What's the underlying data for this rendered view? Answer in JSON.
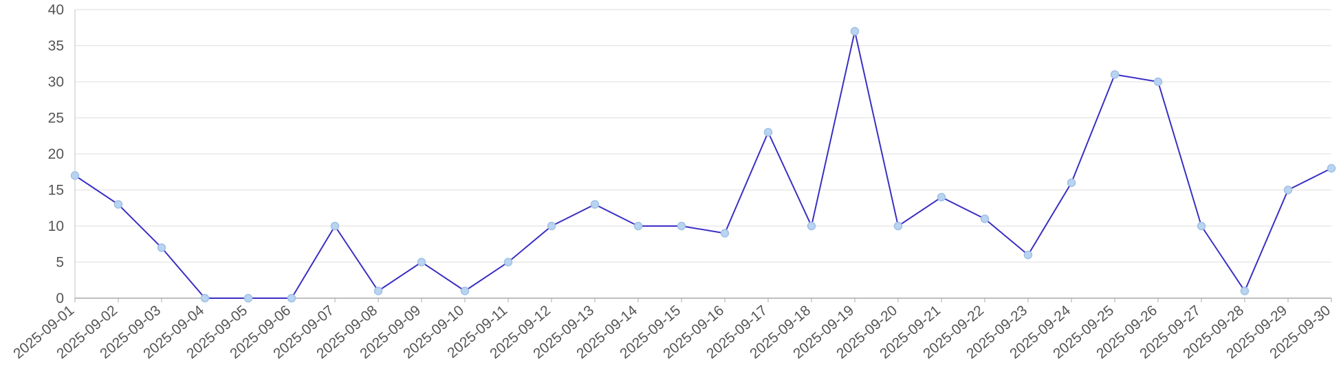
{
  "chart_data": {
    "type": "line",
    "categories": [
      "2025-09-01",
      "2025-09-02",
      "2025-09-03",
      "2025-09-04",
      "2025-09-05",
      "2025-09-06",
      "2025-09-07",
      "2025-09-08",
      "2025-09-09",
      "2025-09-10",
      "2025-09-11",
      "2025-09-12",
      "2025-09-13",
      "2025-09-14",
      "2025-09-15",
      "2025-09-16",
      "2025-09-17",
      "2025-09-18",
      "2025-09-19",
      "2025-09-20",
      "2025-09-21",
      "2025-09-22",
      "2025-09-23",
      "2025-09-24",
      "2025-09-25",
      "2025-09-26",
      "2025-09-27",
      "2025-09-28",
      "2025-09-29",
      "2025-09-30"
    ],
    "values": [
      17,
      13,
      7,
      0,
      0,
      0,
      10,
      1,
      5,
      1,
      5,
      10,
      13,
      10,
      10,
      9,
      23,
      10,
      37,
      10,
      14,
      11,
      6,
      16,
      31,
      30,
      10,
      1,
      15,
      18
    ],
    "color": "#3a2ec4",
    "marker_color": "#b9d4f0",
    "ylim": [
      0,
      40
    ],
    "yticks": [
      0,
      5,
      10,
      15,
      20,
      25,
      30,
      35,
      40
    ],
    "grid": true
  }
}
